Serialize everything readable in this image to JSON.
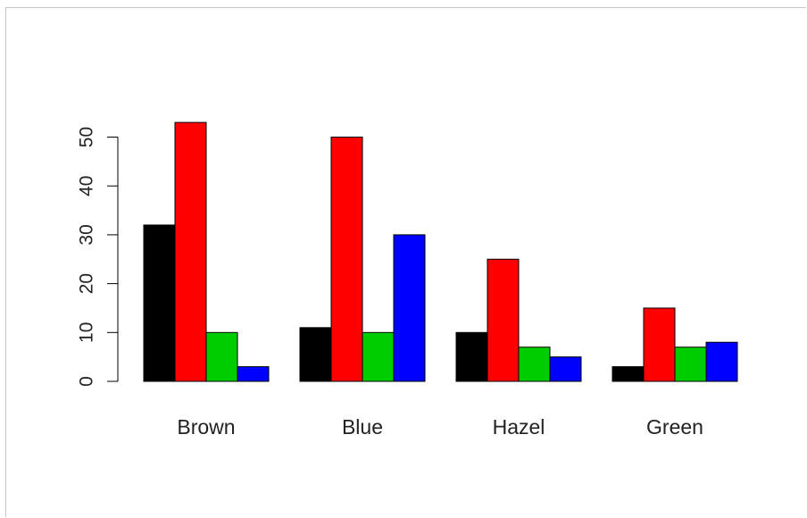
{
  "chart_data": {
    "type": "bar",
    "title": "",
    "xlabel": "",
    "ylabel": "",
    "categories": [
      "Brown",
      "Blue",
      "Hazel",
      "Green"
    ],
    "series": [
      {
        "values": [
          32,
          11,
          10,
          3
        ],
        "color": "#000000"
      },
      {
        "values": [
          53,
          50,
          25,
          15
        ],
        "color": "#ff0000"
      },
      {
        "values": [
          10,
          10,
          7,
          7
        ],
        "color": "#00cd00"
      },
      {
        "values": [
          3,
          30,
          5,
          8
        ],
        "color": "#0000ff"
      }
    ],
    "ylim": [
      0,
      50
    ],
    "yticks": [
      "0",
      "10",
      "20",
      "30",
      "40",
      "50"
    ],
    "grid": false,
    "legend": "none"
  }
}
